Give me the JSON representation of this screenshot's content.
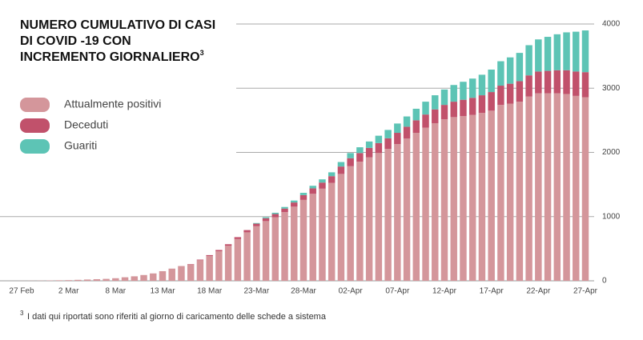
{
  "chart_data": {
    "type": "stacked-bar",
    "title_lines": [
      "NUMERO CUMULATIVO DI CASI",
      "DI COVID -19  CON",
      "INCREMENTO GIORNALIERO"
    ],
    "title_superscript": "3",
    "categories": [
      "27 Feb",
      null,
      null,
      null,
      null,
      "2 Mar",
      null,
      null,
      null,
      null,
      "8 Mar",
      null,
      null,
      null,
      null,
      "13 Mar",
      null,
      null,
      null,
      null,
      "18 Mar",
      null,
      null,
      null,
      null,
      "23-Mar",
      null,
      null,
      null,
      null,
      "28-Mar",
      null,
      null,
      null,
      null,
      "02-Apr",
      null,
      null,
      null,
      null,
      "07-Apr",
      null,
      null,
      null,
      null,
      "12-Apr",
      null,
      null,
      null,
      null,
      "17-Apr",
      null,
      null,
      null,
      null,
      "22-Apr",
      null,
      null,
      null,
      null,
      "27-Apr"
    ],
    "series": [
      {
        "name": "Attualmente positivi",
        "color": "#d4969b",
        "values": [
          1,
          2,
          3,
          5,
          8,
          10,
          15,
          20,
          25,
          30,
          40,
          55,
          70,
          90,
          115,
          150,
          190,
          230,
          255,
          320,
          385,
          460,
          545,
          650,
          755,
          850,
          930,
          990,
          1070,
          1155,
          1260,
          1355,
          1435,
          1525,
          1665,
          1785,
          1855,
          1925,
          1990,
          2055,
          2130,
          2215,
          2305,
          2385,
          2455,
          2515,
          2550,
          2565,
          2585,
          2615,
          2650,
          2740,
          2760,
          2790,
          2870,
          2920,
          2920,
          2920,
          2910,
          2880,
          2860
        ]
      },
      {
        "name": "Deceduti",
        "color": "#c1516b",
        "values": [
          0,
          0,
          0,
          0,
          0,
          0,
          0,
          0,
          0,
          0,
          0,
          0,
          0,
          0,
          0,
          0,
          0,
          0,
          5,
          10,
          15,
          20,
          25,
          30,
          35,
          40,
          45,
          50,
          55,
          65,
          75,
          85,
          95,
          105,
          115,
          125,
          135,
          145,
          155,
          165,
          175,
          185,
          195,
          205,
          215,
          225,
          240,
          255,
          265,
          275,
          290,
          300,
          310,
          320,
          330,
          340,
          350,
          360,
          370,
          380,
          390
        ]
      },
      {
        "name": "Guariti",
        "color": "#5dc4b5",
        "values": [
          0,
          0,
          0,
          0,
          0,
          0,
          0,
          0,
          0,
          0,
          0,
          0,
          0,
          0,
          0,
          0,
          0,
          0,
          0,
          0,
          0,
          0,
          0,
          0,
          0,
          10,
          15,
          20,
          25,
          30,
          35,
          40,
          50,
          60,
          70,
          80,
          90,
          100,
          115,
          130,
          145,
          160,
          180,
          200,
          220,
          240,
          260,
          280,
          300,
          320,
          350,
          380,
          410,
          440,
          470,
          500,
          530,
          560,
          590,
          620,
          650
        ]
      }
    ],
    "ylim": [
      0,
      4000
    ],
    "yticks": [
      0,
      1000,
      2000,
      3000,
      4000
    ],
    "grid": true,
    "footnote_marker": "3",
    "footnote": "I dati qui riportati sono riferiti al giorno di caricamento delle schede a sistema"
  }
}
